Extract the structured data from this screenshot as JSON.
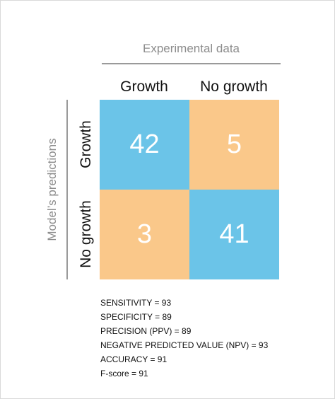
{
  "colors": {
    "correct": "#6bc4e8",
    "incorrect": "#fac88a",
    "axis_title": "#8c8c8c",
    "rule": "#9a9a9a"
  },
  "chart_data": {
    "type": "heatmap",
    "title": "",
    "xlabel": "Experimental data",
    "ylabel": "Model’s predictions",
    "columns": [
      "Growth",
      "No growth"
    ],
    "rows": [
      "Growth",
      "No growth"
    ],
    "values": [
      [
        42,
        5
      ],
      [
        3,
        41
      ]
    ]
  },
  "metrics": [
    "SENSITIVITY = 93",
    "SPECIFICITY = 89",
    "PRECISION  (PPV) = 89",
    "NEGATIVE PREDICTED VALUE (NPV) = 93",
    "ACCURACY = 91",
    "F-score = 91"
  ]
}
